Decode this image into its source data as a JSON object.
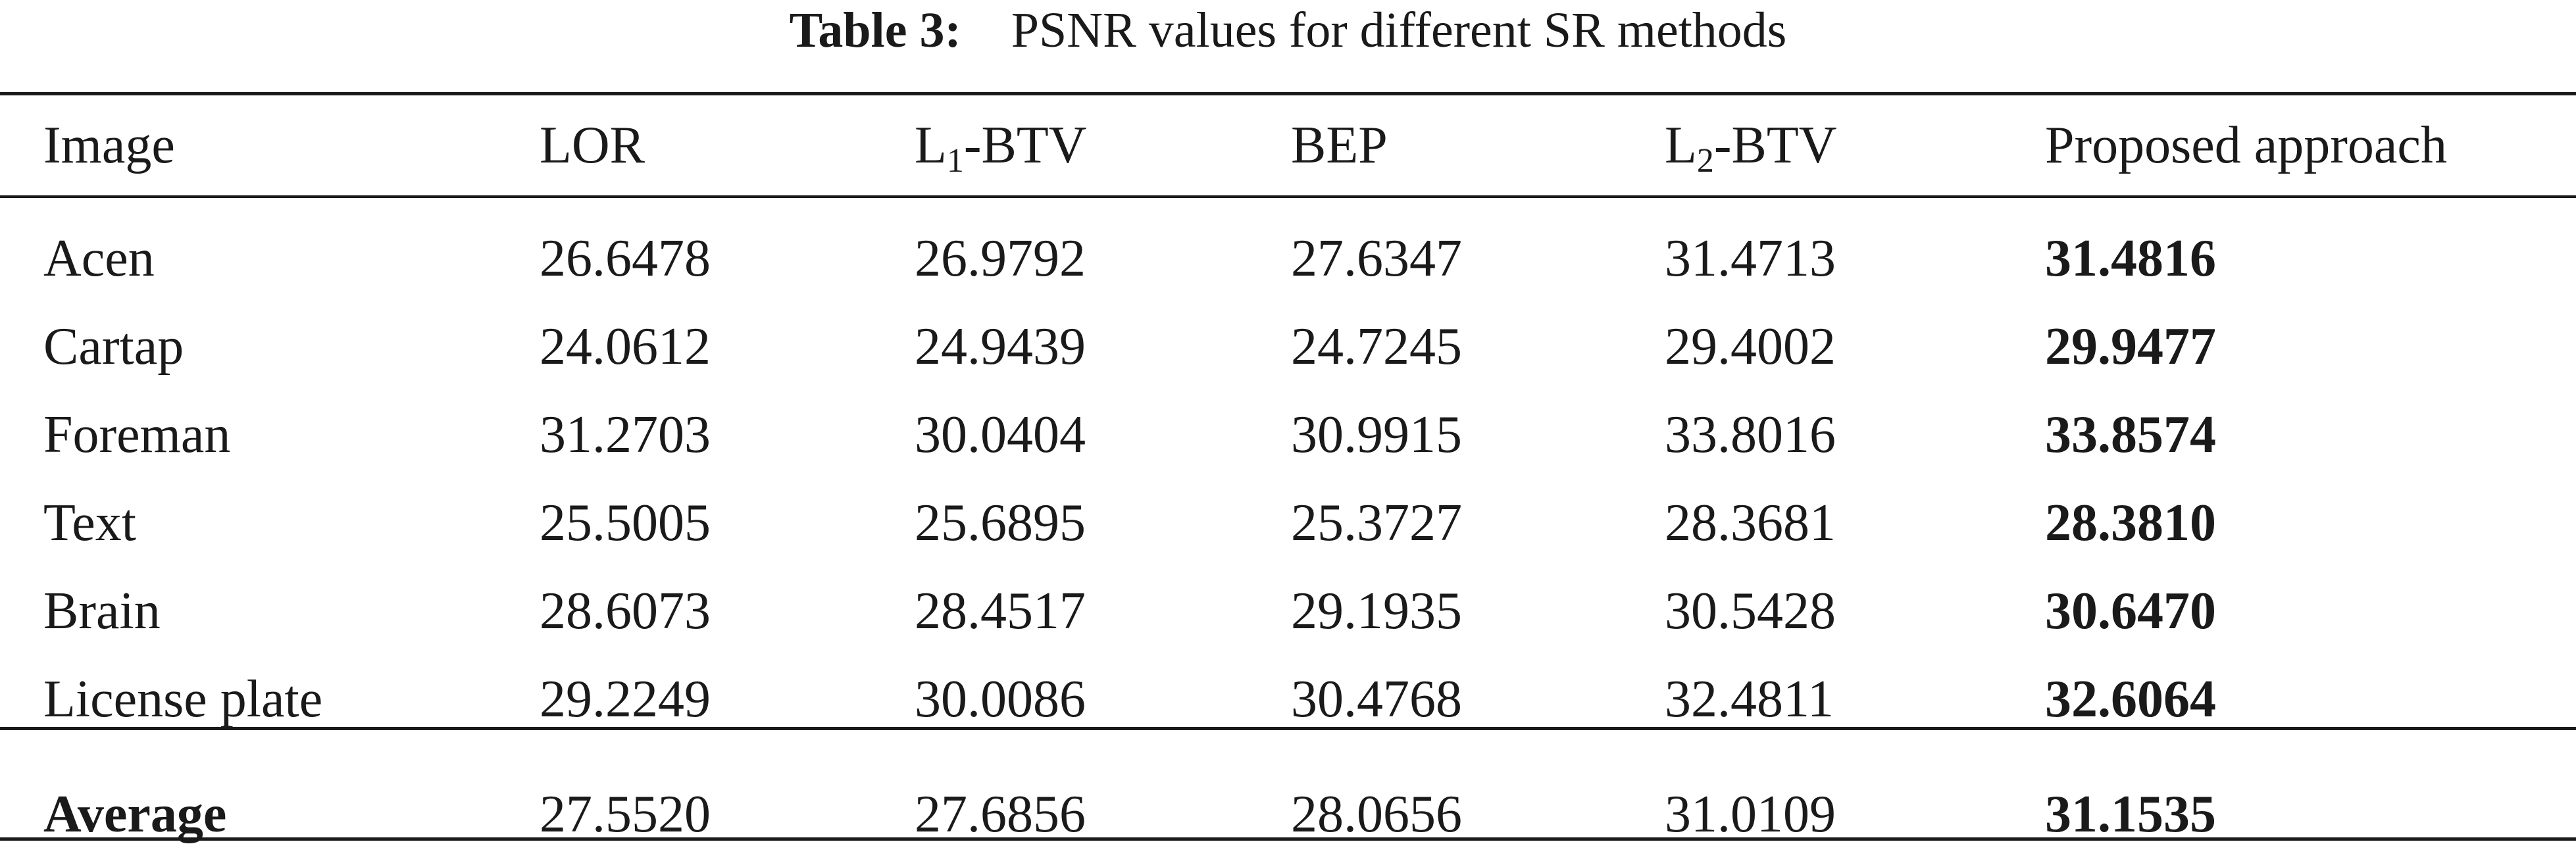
{
  "caption": {
    "label": "Table 3:",
    "text": "PSNR values for different SR methods"
  },
  "table": {
    "headers": {
      "image": "Image",
      "lor": "LOR",
      "l1btv_prefix": "L",
      "l1btv_sub": "1",
      "l1btv_suffix": "-BTV",
      "bep": "BEP",
      "l2btv_prefix": "L",
      "l2btv_sub": "2",
      "l2btv_suffix": "-BTV",
      "proposed": "Proposed approach"
    },
    "rows": [
      {
        "image": "Acen",
        "lor": "26.6478",
        "l1btv": "26.9792",
        "bep": "27.6347",
        "l2btv": "31.4713",
        "proposed": "31.4816"
      },
      {
        "image": "Cartap",
        "lor": "24.0612",
        "l1btv": "24.9439",
        "bep": "24.7245",
        "l2btv": "29.4002",
        "proposed": "29.9477"
      },
      {
        "image": "Foreman",
        "lor": "31.2703",
        "l1btv": "30.0404",
        "bep": "30.9915",
        "l2btv": "33.8016",
        "proposed": "33.8574"
      },
      {
        "image": "Text",
        "lor": "25.5005",
        "l1btv": "25.6895",
        "bep": "25.3727",
        "l2btv": "28.3681",
        "proposed": "28.3810"
      },
      {
        "image": "Brain",
        "lor": "28.6073",
        "l1btv": "28.4517",
        "bep": "29.1935",
        "l2btv": "30.5428",
        "proposed": "30.6470"
      },
      {
        "image": "License plate",
        "lor": "29.2249",
        "l1btv": "30.0086",
        "bep": "30.4768",
        "l2btv": "32.4811",
        "proposed": "32.6064"
      }
    ],
    "average": {
      "image": "Average",
      "lor": "27.5520",
      "l1btv": "27.6856",
      "bep": "28.0656",
      "l2btv": "31.0109",
      "proposed": "31.1535"
    }
  }
}
